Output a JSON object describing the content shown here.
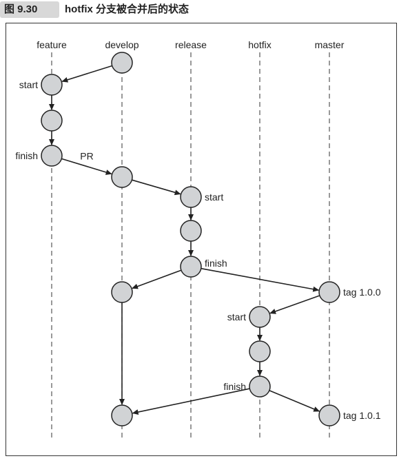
{
  "caption": {
    "figure_label": "图 9.30",
    "title": "hotfix 分支被合并后的状态"
  },
  "lanes": [
    "feature",
    "develop",
    "release",
    "hotfix",
    "master"
  ],
  "nodes": [
    {
      "id": "d1",
      "lane": "develop",
      "step": 0
    },
    {
      "id": "f1",
      "lane": "feature",
      "step": 1,
      "label": "start"
    },
    {
      "id": "f2",
      "lane": "feature",
      "step": 2
    },
    {
      "id": "f3",
      "lane": "feature",
      "step": 3,
      "label": "finish"
    },
    {
      "id": "d2",
      "lane": "develop",
      "step": 4
    },
    {
      "id": "r1",
      "lane": "release",
      "step": 5,
      "label": "start"
    },
    {
      "id": "r2",
      "lane": "release",
      "step": 6
    },
    {
      "id": "r3",
      "lane": "release",
      "step": 7,
      "label": "finish"
    },
    {
      "id": "d3",
      "lane": "develop",
      "step": 8
    },
    {
      "id": "m1",
      "lane": "master",
      "step": 8,
      "label": "tag 1.0.0"
    },
    {
      "id": "h1",
      "lane": "hotfix",
      "step": 9,
      "label": "start"
    },
    {
      "id": "h2",
      "lane": "hotfix",
      "step": 10
    },
    {
      "id": "h3",
      "lane": "hotfix",
      "step": 11,
      "label": "finish"
    },
    {
      "id": "d4",
      "lane": "develop",
      "step": 12
    },
    {
      "id": "m2",
      "lane": "master",
      "step": 12,
      "label": "tag 1.0.1"
    }
  ],
  "edges": [
    {
      "from": "d1",
      "to": "f1"
    },
    {
      "from": "f1",
      "to": "f2"
    },
    {
      "from": "f2",
      "to": "f3"
    },
    {
      "from": "f3",
      "to": "d2",
      "label": "PR"
    },
    {
      "from": "d2",
      "to": "r1"
    },
    {
      "from": "r1",
      "to": "r2"
    },
    {
      "from": "r2",
      "to": "r3"
    },
    {
      "from": "r3",
      "to": "d3"
    },
    {
      "from": "r3",
      "to": "m1"
    },
    {
      "from": "m1",
      "to": "h1"
    },
    {
      "from": "h1",
      "to": "h2"
    },
    {
      "from": "h2",
      "to": "h3"
    },
    {
      "from": "d3",
      "to": "d4"
    },
    {
      "from": "h3",
      "to": "d4"
    },
    {
      "from": "h3",
      "to": "m2"
    }
  ]
}
